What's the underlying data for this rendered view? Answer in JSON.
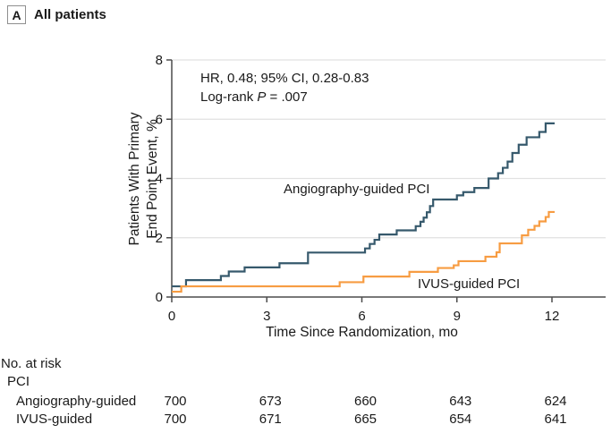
{
  "panel": {
    "label": "A",
    "title": "All patients"
  },
  "annotation": {
    "line1": "HR, 0.48; 95% CI, 0.28-0.83",
    "line2_prefix": "Log-rank ",
    "line2_italic": "P",
    "line2_suffix": " = .007"
  },
  "chart_data": {
    "type": "line",
    "subtype": "kaplan-meier-step",
    "xlabel": "Time Since Randomization, mo",
    "ylabel_lines": [
      "Patients With Primary",
      "End Point Event, %"
    ],
    "xlim": [
      0,
      12
    ],
    "ylim": [
      0,
      8
    ],
    "xticks": [
      0,
      3,
      6,
      9,
      12
    ],
    "yticks": [
      0,
      2,
      4,
      6,
      8
    ],
    "gridlines_y": [
      2,
      4,
      6,
      8
    ],
    "legend_position": "inline-labels",
    "grid": true,
    "colors": {
      "axis": "#4c4c4c",
      "grid": "#e1e1e1",
      "text": "#1a1a1a"
    },
    "series": [
      {
        "name": "Angiography-guided PCI",
        "color": "#36596c",
        "steps": [
          [
            0,
            0.36
          ],
          [
            0.45,
            0.57
          ],
          [
            1.55,
            0.71
          ],
          [
            1.8,
            0.86
          ],
          [
            2.3,
            1.0
          ],
          [
            3.4,
            1.14
          ],
          [
            4.3,
            1.5
          ],
          [
            6.1,
            1.64
          ],
          [
            6.25,
            1.79
          ],
          [
            6.4,
            1.93
          ],
          [
            6.55,
            2.11
          ],
          [
            7.1,
            2.25
          ],
          [
            7.7,
            2.39
          ],
          [
            7.85,
            2.54
          ],
          [
            7.95,
            2.68
          ],
          [
            8.05,
            2.86
          ],
          [
            8.15,
            3.07
          ],
          [
            8.25,
            3.29
          ],
          [
            9.0,
            3.43
          ],
          [
            9.2,
            3.54
          ],
          [
            9.55,
            3.68
          ],
          [
            10.0,
            4.0
          ],
          [
            10.3,
            4.18
          ],
          [
            10.45,
            4.36
          ],
          [
            10.6,
            4.57
          ],
          [
            10.75,
            4.86
          ],
          [
            10.95,
            5.14
          ],
          [
            11.2,
            5.39
          ],
          [
            11.6,
            5.57
          ],
          [
            11.8,
            5.86
          ]
        ]
      },
      {
        "name": "IVUS-guided PCI",
        "color": "#f79c42",
        "steps": [
          [
            0,
            0.18
          ],
          [
            0.3,
            0.36
          ],
          [
            5.3,
            0.5
          ],
          [
            6.05,
            0.69
          ],
          [
            7.5,
            0.85
          ],
          [
            8.4,
            0.98
          ],
          [
            8.9,
            1.07
          ],
          [
            9.05,
            1.21
          ],
          [
            9.9,
            1.36
          ],
          [
            10.25,
            1.51
          ],
          [
            10.35,
            1.81
          ],
          [
            11.05,
            2.08
          ],
          [
            11.25,
            2.27
          ],
          [
            11.45,
            2.4
          ],
          [
            11.6,
            2.55
          ],
          [
            11.8,
            2.7
          ],
          [
            11.9,
            2.87
          ]
        ]
      }
    ]
  },
  "risk_table": {
    "title": "No. at risk",
    "group": "PCI",
    "timepoints": [
      0,
      3,
      6,
      9,
      12
    ],
    "rows": [
      {
        "label": "Angiography-guided",
        "values": [
          "700",
          "673",
          "660",
          "643",
          "624"
        ]
      },
      {
        "label": "IVUS-guided",
        "values": [
          "700",
          "671",
          "665",
          "654",
          "641"
        ]
      }
    ]
  }
}
